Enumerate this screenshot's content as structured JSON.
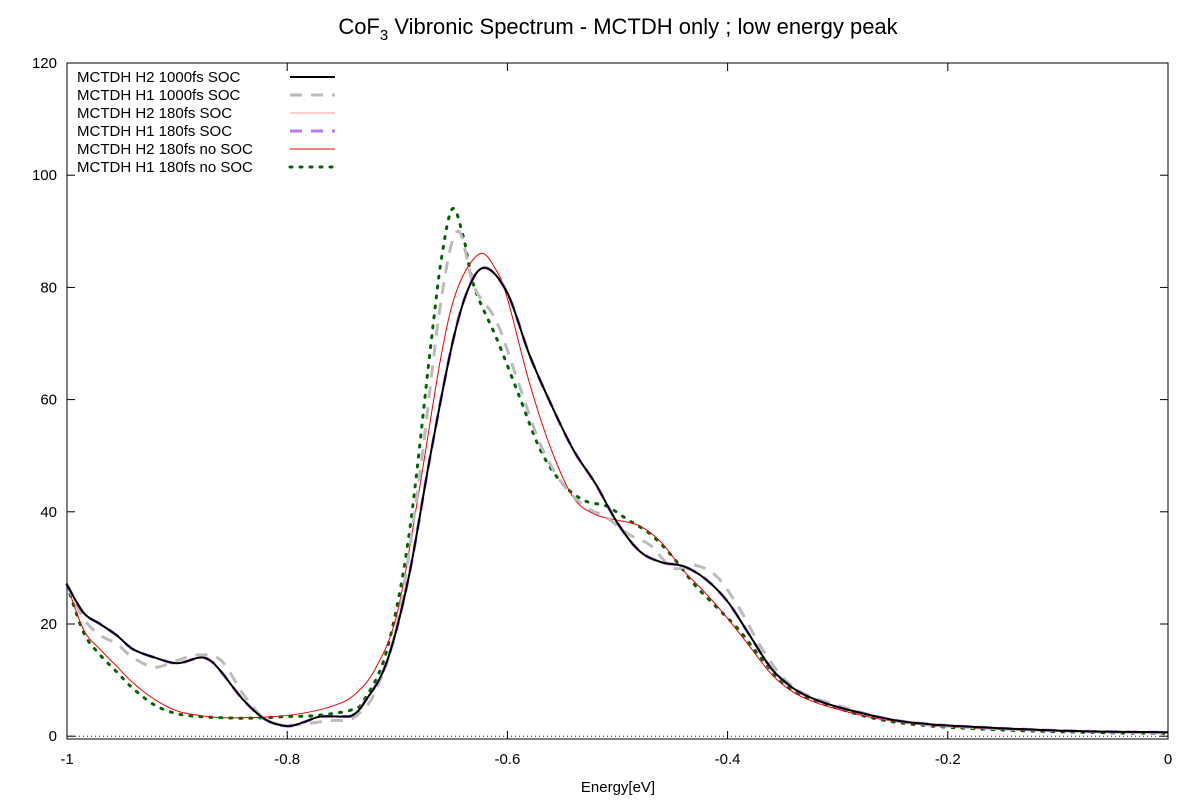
{
  "chart_data": {
    "type": "line",
    "title": {
      "prefix": "CoF",
      "subscript": "3",
      "suffix": " Vibronic Spectrum - MCTDH only ; low energy peak"
    },
    "xlabel": "Energy[eV]",
    "ylabel": "",
    "xlim": [
      -1,
      0
    ],
    "ylim": [
      -0.5,
      120
    ],
    "x_ticks": [
      -1,
      -0.8,
      -0.6,
      -0.4,
      -0.2,
      0
    ],
    "x_tick_labels": [
      "-1",
      "-0.8",
      "-0.6",
      "-0.4",
      "-0.2",
      "0"
    ],
    "y_ticks": [
      0,
      20,
      40,
      60,
      80,
      100,
      120
    ],
    "y_tick_labels": [
      "0",
      "20",
      "40",
      "60",
      "80",
      "100",
      "120"
    ],
    "grid": false,
    "legend_position": "top-left",
    "zero_line": true,
    "series": [
      {
        "name": "MCTDH H2 1000fs SOC",
        "color": "#000000",
        "style": "solid",
        "width": 2,
        "points": [
          [
            -1,
            27
          ],
          [
            -0.985,
            22
          ],
          [
            -0.97,
            20
          ],
          [
            -0.955,
            18
          ],
          [
            -0.94,
            15.5
          ],
          [
            -0.92,
            14
          ],
          [
            -0.9,
            13
          ],
          [
            -0.88,
            14
          ],
          [
            -0.87,
            13.5
          ],
          [
            -0.86,
            11.5
          ],
          [
            -0.84,
            6.5
          ],
          [
            -0.82,
            3
          ],
          [
            -0.8,
            1.8
          ],
          [
            -0.785,
            2.5
          ],
          [
            -0.77,
            3.5
          ],
          [
            -0.75,
            3.5
          ],
          [
            -0.74,
            3.8
          ],
          [
            -0.73,
            6
          ],
          [
            -0.71,
            13
          ],
          [
            -0.69,
            28
          ],
          [
            -0.67,
            50
          ],
          [
            -0.65,
            70
          ],
          [
            -0.635,
            80
          ],
          [
            -0.62,
            83.5
          ],
          [
            -0.6,
            79
          ],
          [
            -0.58,
            68
          ],
          [
            -0.56,
            59
          ],
          [
            -0.54,
            51
          ],
          [
            -0.52,
            45
          ],
          [
            -0.5,
            38
          ],
          [
            -0.48,
            33
          ],
          [
            -0.46,
            31
          ],
          [
            -0.44,
            30.3
          ],
          [
            -0.42,
            28
          ],
          [
            -0.4,
            24
          ],
          [
            -0.38,
            18
          ],
          [
            -0.36,
            12
          ],
          [
            -0.34,
            8.5
          ],
          [
            -0.32,
            6.5
          ],
          [
            -0.3,
            5.2
          ],
          [
            -0.28,
            4.2
          ],
          [
            -0.26,
            3.3
          ],
          [
            -0.24,
            2.6
          ],
          [
            -0.22,
            2.2
          ],
          [
            -0.2,
            1.9
          ],
          [
            -0.15,
            1.4
          ],
          [
            -0.1,
            1
          ],
          [
            -0.05,
            0.8
          ],
          [
            0,
            0.7
          ]
        ]
      },
      {
        "name": "MCTDH H1 1000fs SOC",
        "color": "#bbbbbb",
        "style": "dashed",
        "width": 3,
        "points": [
          [
            -1,
            27
          ],
          [
            -0.985,
            21
          ],
          [
            -0.97,
            18
          ],
          [
            -0.955,
            16.5
          ],
          [
            -0.94,
            14
          ],
          [
            -0.92,
            12.3
          ],
          [
            -0.9,
            13.5
          ],
          [
            -0.88,
            14.5
          ],
          [
            -0.86,
            13.5
          ],
          [
            -0.84,
            7.5
          ],
          [
            -0.82,
            3
          ],
          [
            -0.8,
            2
          ],
          [
            -0.78,
            2.3
          ],
          [
            -0.76,
            2.8
          ],
          [
            -0.745,
            2.9
          ],
          [
            -0.735,
            4
          ],
          [
            -0.72,
            8
          ],
          [
            -0.7,
            20
          ],
          [
            -0.68,
            46
          ],
          [
            -0.66,
            78
          ],
          [
            -0.645,
            90
          ],
          [
            -0.63,
            80
          ],
          [
            -0.61,
            74
          ],
          [
            -0.59,
            63
          ],
          [
            -0.57,
            52
          ],
          [
            -0.55,
            45
          ],
          [
            -0.53,
            41
          ],
          [
            -0.51,
            39
          ],
          [
            -0.49,
            36
          ],
          [
            -0.47,
            34
          ],
          [
            -0.45,
            30
          ],
          [
            -0.43,
            30.5
          ],
          [
            -0.41,
            28.5
          ],
          [
            -0.39,
            23
          ],
          [
            -0.37,
            16
          ],
          [
            -0.35,
            10.5
          ],
          [
            -0.33,
            7.5
          ],
          [
            -0.3,
            5.5
          ],
          [
            -0.28,
            4.3
          ],
          [
            -0.26,
            3.3
          ],
          [
            -0.24,
            2.6
          ],
          [
            -0.22,
            2.1
          ],
          [
            -0.2,
            1.8
          ],
          [
            -0.15,
            1.3
          ],
          [
            -0.1,
            1
          ],
          [
            -0.05,
            0.7
          ],
          [
            0,
            0.6
          ]
        ]
      },
      {
        "name": "MCTDH H2 180fs SOC",
        "color": "#ff9999",
        "style": "solid",
        "width": 1,
        "points": [
          [
            -1,
            27
          ],
          [
            -0.985,
            22
          ],
          [
            -0.97,
            20
          ],
          [
            -0.955,
            18
          ],
          [
            -0.94,
            15.5
          ],
          [
            -0.92,
            14
          ],
          [
            -0.9,
            13
          ],
          [
            -0.88,
            14
          ],
          [
            -0.87,
            13.5
          ],
          [
            -0.86,
            11.5
          ],
          [
            -0.84,
            6.5
          ],
          [
            -0.82,
            3
          ],
          [
            -0.8,
            1.8
          ],
          [
            -0.785,
            2.5
          ],
          [
            -0.77,
            3.5
          ],
          [
            -0.75,
            3.5
          ],
          [
            -0.74,
            3.8
          ],
          [
            -0.73,
            6
          ],
          [
            -0.71,
            13
          ],
          [
            -0.69,
            28
          ],
          [
            -0.67,
            50
          ],
          [
            -0.65,
            70
          ],
          [
            -0.635,
            80
          ],
          [
            -0.62,
            83.5
          ],
          [
            -0.6,
            79
          ],
          [
            -0.58,
            68
          ],
          [
            -0.56,
            59
          ],
          [
            -0.54,
            51
          ],
          [
            -0.52,
            45
          ],
          [
            -0.5,
            38
          ],
          [
            -0.48,
            33
          ],
          [
            -0.46,
            31
          ],
          [
            -0.44,
            30.3
          ],
          [
            -0.42,
            28
          ],
          [
            -0.4,
            24
          ],
          [
            -0.38,
            18
          ],
          [
            -0.36,
            12
          ],
          [
            -0.34,
            8.5
          ],
          [
            -0.32,
            6.5
          ],
          [
            -0.3,
            5.2
          ],
          [
            -0.28,
            4.2
          ],
          [
            -0.26,
            3.3
          ],
          [
            -0.24,
            2.6
          ],
          [
            -0.22,
            2.2
          ],
          [
            -0.2,
            1.9
          ],
          [
            -0.15,
            1.4
          ],
          [
            -0.1,
            1
          ],
          [
            -0.05,
            0.8
          ],
          [
            0,
            0.7
          ]
        ]
      },
      {
        "name": "MCTDH H1 180fs SOC",
        "color": "#bb77ee",
        "style": "dashed",
        "width": 3,
        "points": [
          [
            -1,
            27
          ],
          [
            -0.985,
            22
          ],
          [
            -0.97,
            20
          ],
          [
            -0.955,
            18
          ],
          [
            -0.94,
            15.5
          ],
          [
            -0.92,
            14
          ],
          [
            -0.9,
            13
          ],
          [
            -0.88,
            14
          ],
          [
            -0.87,
            13.5
          ],
          [
            -0.86,
            11.5
          ],
          [
            -0.84,
            6.5
          ],
          [
            -0.82,
            3
          ],
          [
            -0.8,
            1.8
          ],
          [
            -0.785,
            2.5
          ],
          [
            -0.77,
            3.5
          ],
          [
            -0.75,
            3.5
          ],
          [
            -0.74,
            3.8
          ],
          [
            -0.73,
            6
          ],
          [
            -0.71,
            13
          ],
          [
            -0.69,
            28
          ],
          [
            -0.67,
            50
          ],
          [
            -0.65,
            70
          ],
          [
            -0.635,
            80
          ],
          [
            -0.62,
            83.5
          ],
          [
            -0.6,
            79
          ],
          [
            -0.58,
            68
          ],
          [
            -0.56,
            59
          ],
          [
            -0.54,
            51
          ],
          [
            -0.52,
            45
          ],
          [
            -0.5,
            38
          ],
          [
            -0.48,
            33
          ],
          [
            -0.46,
            31
          ],
          [
            -0.44,
            30.3
          ],
          [
            -0.42,
            28
          ],
          [
            -0.4,
            24
          ],
          [
            -0.38,
            18
          ],
          [
            -0.36,
            12
          ],
          [
            -0.34,
            8.5
          ],
          [
            -0.32,
            6.5
          ],
          [
            -0.3,
            5.2
          ],
          [
            -0.28,
            4.2
          ],
          [
            -0.26,
            3.3
          ],
          [
            -0.24,
            2.6
          ],
          [
            -0.22,
            2.2
          ],
          [
            -0.2,
            1.9
          ],
          [
            -0.15,
            1.4
          ],
          [
            -0.1,
            1
          ],
          [
            -0.05,
            0.8
          ],
          [
            0,
            0.7
          ]
        ]
      },
      {
        "name": "MCTDH H2 180fs no SOC",
        "color": "#ee0000",
        "style": "solid",
        "width": 1,
        "points": [
          [
            -1,
            27
          ],
          [
            -0.985,
            19
          ],
          [
            -0.97,
            15.5
          ],
          [
            -0.955,
            12.5
          ],
          [
            -0.94,
            9.5
          ],
          [
            -0.92,
            6.5
          ],
          [
            -0.9,
            4.5
          ],
          [
            -0.88,
            3.7
          ],
          [
            -0.86,
            3.3
          ],
          [
            -0.84,
            3.3
          ],
          [
            -0.82,
            3.4
          ],
          [
            -0.8,
            3.7
          ],
          [
            -0.78,
            4.3
          ],
          [
            -0.76,
            5.3
          ],
          [
            -0.74,
            7.2
          ],
          [
            -0.72,
            12
          ],
          [
            -0.7,
            22
          ],
          [
            -0.68,
            44
          ],
          [
            -0.66,
            68
          ],
          [
            -0.645,
            80
          ],
          [
            -0.625,
            86
          ],
          [
            -0.61,
            83
          ],
          [
            -0.6,
            78
          ],
          [
            -0.58,
            63
          ],
          [
            -0.56,
            51
          ],
          [
            -0.54,
            42.5
          ],
          [
            -0.52,
            39.5
          ],
          [
            -0.5,
            38.5
          ],
          [
            -0.48,
            37.5
          ],
          [
            -0.46,
            34.5
          ],
          [
            -0.44,
            29.5
          ],
          [
            -0.42,
            25.5
          ],
          [
            -0.4,
            21
          ],
          [
            -0.38,
            16
          ],
          [
            -0.36,
            11
          ],
          [
            -0.34,
            7.8
          ],
          [
            -0.32,
            6
          ],
          [
            -0.3,
            4.8
          ],
          [
            -0.28,
            3.8
          ],
          [
            -0.26,
            3
          ],
          [
            -0.24,
            2.4
          ],
          [
            -0.22,
            2
          ],
          [
            -0.2,
            1.7
          ],
          [
            -0.15,
            1.2
          ],
          [
            -0.1,
            0.9
          ],
          [
            -0.05,
            0.7
          ],
          [
            0,
            0.6
          ]
        ]
      },
      {
        "name": "MCTDH H1 180fs no SOC",
        "color": "#006400",
        "style": "dotted",
        "width": 3,
        "points": [
          [
            -1,
            27
          ],
          [
            -0.985,
            18.5
          ],
          [
            -0.97,
            14.5
          ],
          [
            -0.955,
            11.5
          ],
          [
            -0.94,
            8.5
          ],
          [
            -0.92,
            5.5
          ],
          [
            -0.9,
            4
          ],
          [
            -0.88,
            3.5
          ],
          [
            -0.86,
            3.3
          ],
          [
            -0.84,
            3.2
          ],
          [
            -0.82,
            3.3
          ],
          [
            -0.8,
            3.5
          ],
          [
            -0.78,
            3.6
          ],
          [
            -0.76,
            4
          ],
          [
            -0.74,
            4.8
          ],
          [
            -0.73,
            6.5
          ],
          [
            -0.71,
            15
          ],
          [
            -0.69,
            35
          ],
          [
            -0.67,
            69
          ],
          [
            -0.66,
            85
          ],
          [
            -0.65,
            94
          ],
          [
            -0.64,
            89
          ],
          [
            -0.63,
            80
          ],
          [
            -0.61,
            71
          ],
          [
            -0.59,
            61
          ],
          [
            -0.57,
            51
          ],
          [
            -0.55,
            45
          ],
          [
            -0.53,
            42
          ],
          [
            -0.51,
            41
          ],
          [
            -0.49,
            38.5
          ],
          [
            -0.47,
            36
          ],
          [
            -0.45,
            32
          ],
          [
            -0.43,
            27
          ],
          [
            -0.41,
            23
          ],
          [
            -0.39,
            19
          ],
          [
            -0.37,
            14
          ],
          [
            -0.35,
            9.5
          ],
          [
            -0.33,
            7
          ],
          [
            -0.3,
            5
          ],
          [
            -0.28,
            3.8
          ],
          [
            -0.26,
            2.9
          ],
          [
            -0.24,
            2.3
          ],
          [
            -0.22,
            1.9
          ],
          [
            -0.2,
            1.6
          ],
          [
            -0.15,
            1.1
          ],
          [
            -0.1,
            0.8
          ],
          [
            -0.05,
            0.6
          ],
          [
            0,
            0.5
          ]
        ]
      }
    ]
  }
}
